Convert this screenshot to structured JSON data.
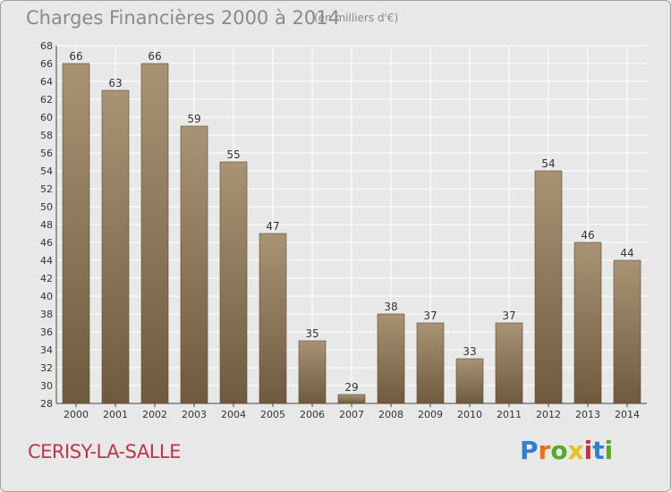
{
  "header": {
    "title": "Charges Financières 2000 à 2014",
    "subtitle": "(en milliers d'€)"
  },
  "footer": {
    "place": "CERISY-LA-SALLE",
    "logo": "Proxiti",
    "logo_colors": [
      "#2f7fd0",
      "#e8701a",
      "#5aa82a",
      "#e8c21a",
      "#c0344a",
      "#2f7fd0",
      "#5aa82a"
    ]
  },
  "colors": {
    "bar_top": "#a89474",
    "bar_bottom": "#6e5a3e",
    "grid": "#ffffff",
    "axis_text": "#333333"
  },
  "chart_data": {
    "type": "bar",
    "title": "Charges Financières 2000 à 2014",
    "subtitle": "(en milliers d'€)",
    "xlabel": "",
    "ylabel": "",
    "categories": [
      "2000",
      "2001",
      "2002",
      "2003",
      "2004",
      "2005",
      "2006",
      "2007",
      "2008",
      "2009",
      "2010",
      "2011",
      "2012",
      "2013",
      "2014"
    ],
    "values": [
      66,
      63,
      66,
      59,
      55,
      47,
      35,
      29,
      38,
      37,
      33,
      37,
      54,
      46,
      44
    ],
    "ylim": [
      28,
      68
    ],
    "ytick_step": 2,
    "grid": true,
    "data_labels": true
  }
}
